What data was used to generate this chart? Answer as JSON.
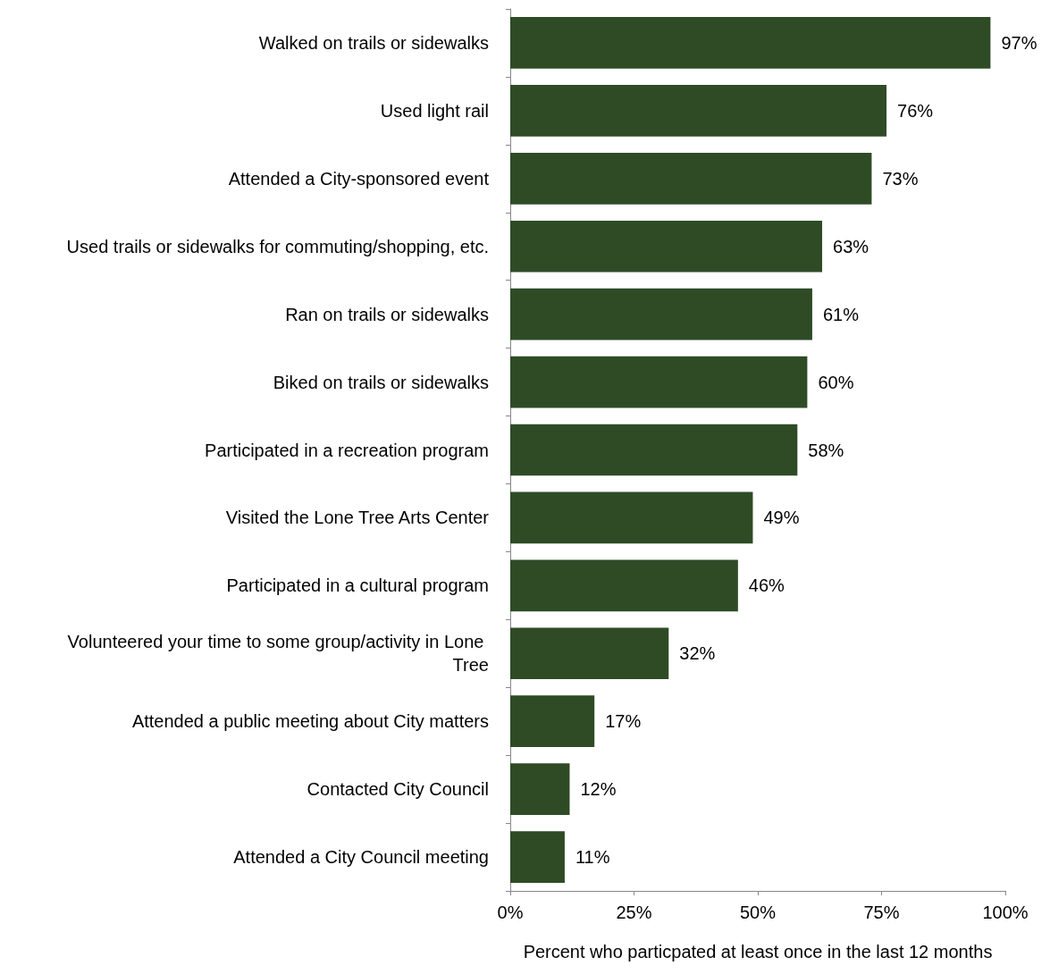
{
  "chart_data": {
    "type": "bar",
    "orientation": "horizontal",
    "xlabel": "Percent who particpated at least once in the last 12 months",
    "categories": [
      "Walked on trails or sidewalks",
      "Used light rail",
      "Attended a City-sponsored event",
      "Used trails or sidewalks for commuting/shopping, etc.",
      "Ran on trails or sidewalks",
      "Biked on trails or sidewalks",
      "Participated in a recreation program",
      "Visited the Lone Tree Arts Center",
      "Participated in a cultural program",
      "Volunteered your time to some group/activity in Lone Tree",
      "Attended a public meeting about City matters",
      "Contacted City Council",
      "Attended a City Council meeting"
    ],
    "values": [
      97,
      76,
      73,
      63,
      61,
      60,
      58,
      49,
      46,
      32,
      17,
      12,
      11
    ],
    "value_labels": [
      "97%",
      "76%",
      "73%",
      "63%",
      "61%",
      "60%",
      "58%",
      "49%",
      "46%",
      "32%",
      "17%",
      "12%",
      "11%"
    ],
    "color": "#2e4b26",
    "xlim": [
      0,
      100
    ],
    "xticks": [
      {
        "value": 0,
        "label": "0%"
      },
      {
        "value": 25,
        "label": "25%"
      },
      {
        "value": 50,
        "label": "50%"
      },
      {
        "value": 75,
        "label": "75%"
      },
      {
        "value": 100,
        "label": "100%"
      }
    ],
    "grid": false
  }
}
